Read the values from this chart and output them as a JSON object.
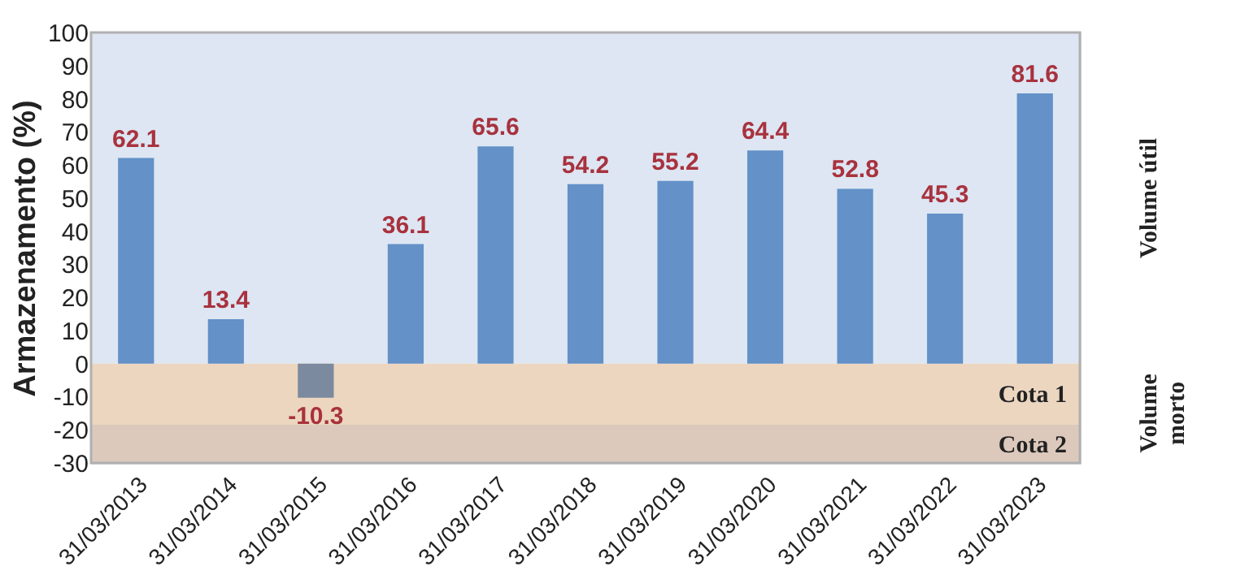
{
  "chart_data": {
    "type": "bar",
    "ylabel": "Armazenamento (%)",
    "categories": [
      "31/03/2013",
      "31/03/2014",
      "31/03/2015",
      "31/03/2016",
      "31/03/2017",
      "31/03/2018",
      "31/03/2019",
      "31/03/2020",
      "31/03/2021",
      "31/03/2022",
      "31/03/2023"
    ],
    "values": [
      62.1,
      13.4,
      -10.3,
      36.1,
      65.6,
      54.2,
      55.2,
      64.4,
      52.8,
      45.3,
      81.6
    ],
    "colors": [
      "#6391c8",
      "#6391c8",
      "#7c8aa0",
      "#6391c8",
      "#6391c8",
      "#6391c8",
      "#6391c8",
      "#6391c8",
      "#6391c8",
      "#6391c8",
      "#6391c8"
    ],
    "data_labels": true,
    "ylim": [
      -30,
      100
    ],
    "yticks": [
      -30,
      -20,
      -10,
      0,
      10,
      20,
      30,
      40,
      50,
      60,
      70,
      80,
      90,
      100
    ],
    "bands": [
      {
        "axis": "y",
        "from": 0,
        "to": 100,
        "color": "#dde6f2"
      },
      {
        "axis": "y",
        "from": -18.5,
        "to": 0,
        "label": "Cota 1",
        "color": "#ecd6c0"
      },
      {
        "axis": "y",
        "from": -30,
        "to": -18.5,
        "label": "Cota 2",
        "color": "#dcc9bc"
      }
    ],
    "annotations": [
      "Volume útil",
      "Volume\nmorto"
    ]
  }
}
